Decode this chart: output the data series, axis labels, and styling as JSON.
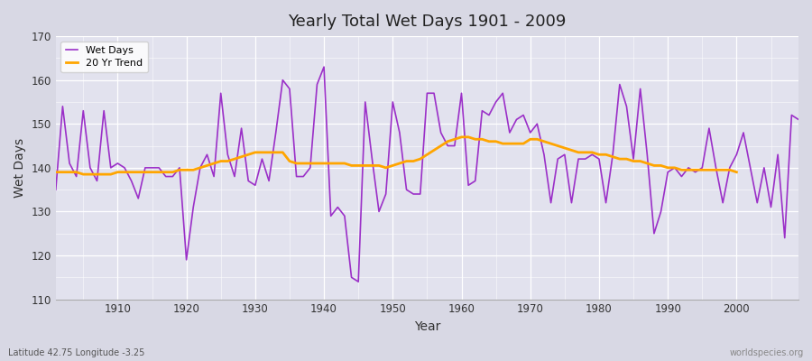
{
  "title": "Yearly Total Wet Days 1901 - 2009",
  "xlabel": "Year",
  "ylabel": "Wet Days",
  "ylim": [
    110,
    170
  ],
  "yticks": [
    110,
    120,
    130,
    140,
    150,
    160,
    170
  ],
  "xlim": [
    1901,
    2009
  ],
  "xticks": [
    1910,
    1920,
    1930,
    1940,
    1950,
    1960,
    1970,
    1980,
    1990,
    2000
  ],
  "wet_days_color": "#9B30C8",
  "trend_color": "#FFA500",
  "background_color": "#DCDCE8",
  "plot_bg_color": "#E4E4EE",
  "grid_color": "#FFFFFF",
  "subtitle_left": "Latitude 42.75 Longitude -3.25",
  "subtitle_right": "worldspecies.org",
  "legend_labels": [
    "Wet Days",
    "20 Yr Trend"
  ],
  "years": [
    1901,
    1902,
    1903,
    1904,
    1905,
    1906,
    1907,
    1908,
    1909,
    1910,
    1911,
    1912,
    1913,
    1914,
    1915,
    1916,
    1917,
    1918,
    1919,
    1920,
    1921,
    1922,
    1923,
    1924,
    1925,
    1926,
    1927,
    1928,
    1929,
    1930,
    1931,
    1932,
    1933,
    1934,
    1935,
    1936,
    1937,
    1938,
    1939,
    1940,
    1941,
    1942,
    1943,
    1944,
    1945,
    1946,
    1947,
    1948,
    1949,
    1950,
    1951,
    1952,
    1953,
    1954,
    1955,
    1956,
    1957,
    1958,
    1959,
    1960,
    1961,
    1962,
    1963,
    1964,
    1965,
    1966,
    1967,
    1968,
    1969,
    1970,
    1971,
    1972,
    1973,
    1974,
    1975,
    1976,
    1977,
    1978,
    1979,
    1980,
    1981,
    1982,
    1983,
    1984,
    1985,
    1986,
    1987,
    1988,
    1989,
    1990,
    1991,
    1992,
    1993,
    1994,
    1995,
    1996,
    1997,
    1998,
    1999,
    2000,
    2001,
    2002,
    2003,
    2004,
    2005,
    2006,
    2007,
    2008,
    2009
  ],
  "wet_days": [
    135,
    154,
    141,
    138,
    153,
    140,
    137,
    153,
    140,
    141,
    140,
    137,
    133,
    140,
    140,
    140,
    138,
    138,
    140,
    119,
    131,
    140,
    143,
    138,
    157,
    143,
    138,
    149,
    137,
    136,
    142,
    137,
    148,
    160,
    158,
    138,
    138,
    140,
    159,
    163,
    129,
    131,
    129,
    115,
    114,
    155,
    142,
    130,
    134,
    155,
    148,
    135,
    134,
    134,
    157,
    157,
    148,
    145,
    145,
    157,
    136,
    137,
    153,
    152,
    155,
    157,
    148,
    151,
    152,
    148,
    150,
    143,
    132,
    142,
    143,
    132,
    142,
    142,
    143,
    142,
    132,
    143,
    159,
    154,
    142,
    158,
    143,
    125,
    130,
    139,
    140,
    138,
    140,
    139,
    140,
    149,
    140,
    132,
    140,
    143,
    148,
    140,
    132,
    140,
    131,
    143,
    124,
    152,
    151
  ],
  "trend_years": [
    1901,
    1902,
    1903,
    1904,
    1905,
    1906,
    1907,
    1908,
    1909,
    1910,
    1911,
    1912,
    1913,
    1914,
    1915,
    1916,
    1917,
    1918,
    1919,
    1920,
    1921,
    1922,
    1923,
    1924,
    1925,
    1926,
    1927,
    1928,
    1929,
    1930,
    1931,
    1932,
    1933,
    1934,
    1935,
    1936,
    1937,
    1938,
    1939,
    1940,
    1941,
    1942,
    1943,
    1944,
    1945,
    1946,
    1947,
    1948,
    1949,
    1950,
    1951,
    1952,
    1953,
    1954,
    1955,
    1956,
    1957,
    1958,
    1959,
    1960,
    1961,
    1962,
    1963,
    1964,
    1965,
    1966,
    1967,
    1968,
    1969,
    1970,
    1971,
    1972,
    1973,
    1974,
    1975,
    1976,
    1977,
    1978,
    1979,
    1980,
    1981,
    1982,
    1983,
    1984,
    1985,
    1986,
    1987,
    1988,
    1989,
    1990,
    1991,
    1992,
    1993,
    1994,
    1995,
    1996,
    1997,
    1998,
    1999,
    2000
  ],
  "trend_values": [
    139.0,
    139.0,
    139.0,
    139.0,
    138.5,
    138.5,
    138.5,
    138.5,
    138.5,
    139.0,
    139.0,
    139.0,
    139.0,
    139.0,
    139.0,
    139.0,
    139.0,
    139.0,
    139.5,
    139.5,
    139.5,
    140.0,
    140.5,
    141.0,
    141.5,
    141.5,
    142.0,
    142.5,
    143.0,
    143.5,
    143.5,
    143.5,
    143.5,
    143.5,
    141.5,
    141.0,
    141.0,
    141.0,
    141.0,
    141.0,
    141.0,
    141.0,
    141.0,
    140.5,
    140.5,
    140.5,
    140.5,
    140.5,
    140.0,
    140.5,
    141.0,
    141.5,
    141.5,
    142.0,
    143.0,
    144.0,
    145.0,
    146.0,
    146.5,
    147.0,
    147.0,
    146.5,
    146.5,
    146.0,
    146.0,
    145.5,
    145.5,
    145.5,
    145.5,
    146.5,
    146.5,
    146.0,
    145.5,
    145.0,
    144.5,
    144.0,
    143.5,
    143.5,
    143.5,
    143.0,
    143.0,
    142.5,
    142.0,
    142.0,
    141.5,
    141.5,
    141.0,
    140.5,
    140.5,
    140.0,
    140.0,
    139.5,
    139.5,
    139.5,
    139.5,
    139.5,
    139.5,
    139.5,
    139.5,
    139.0
  ]
}
